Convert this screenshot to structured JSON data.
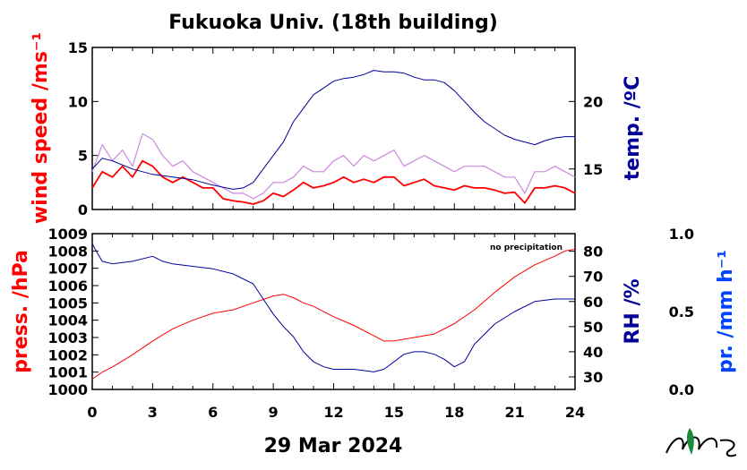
{
  "title": "Fukuoka Univ. (18th building)",
  "date_label": "29 Mar 2024",
  "note": "no precipitation",
  "labels": {
    "wind": "wind speed /ms⁻¹",
    "temp": "temp. /ºC",
    "press": "press. /hPa",
    "rh": "RH /%",
    "precip": "pr. /mm h⁻¹"
  },
  "colors": {
    "wind": "#ff0000",
    "wind_gust": "#cc88dd",
    "temp": "#000099",
    "press": "#ff0000",
    "rh": "#000099",
    "precip": "#0044ff",
    "logo": "#1a8a3a"
  },
  "chart_data": [
    {
      "type": "line",
      "panel": "top",
      "x_ticks": [
        0,
        3,
        6,
        9,
        12,
        15,
        18,
        21,
        24
      ],
      "xlim": [
        0,
        24
      ],
      "left_axis": {
        "ylim": [
          0,
          15
        ],
        "ticks": [
          0,
          5,
          10,
          15
        ]
      },
      "right_axis": {
        "ylim": [
          12,
          24
        ],
        "ticks": [
          15,
          20
        ]
      },
      "series": [
        {
          "key": "wind_gust",
          "axis": "left",
          "x": [
            0,
            0.5,
            1,
            1.5,
            2,
            2.5,
            3,
            3.5,
            4,
            4.5,
            5,
            5.5,
            6,
            6.5,
            7,
            7.5,
            8,
            8.5,
            9,
            9.5,
            10,
            10.5,
            11,
            11.5,
            12,
            12.5,
            13,
            13.5,
            14,
            14.5,
            15,
            15.5,
            16,
            16.5,
            17,
            17.5,
            18,
            18.5,
            19,
            19.5,
            20,
            20.5,
            21,
            21.5,
            22,
            22.5,
            23,
            23.5,
            24
          ],
          "y": [
            3.5,
            6,
            4.5,
            5.5,
            4,
            7,
            6.5,
            5,
            4,
            4.5,
            3.5,
            3,
            2.5,
            2,
            1.5,
            1.5,
            1,
            1.5,
            2.5,
            2.5,
            3,
            4,
            3.5,
            3.5,
            4.5,
            5,
            4,
            5,
            4.5,
            5,
            5.5,
            4,
            4.5,
            5,
            4.5,
            4,
            3.5,
            4,
            4,
            4,
            3.5,
            3,
            3,
            1.5,
            3.5,
            3.5,
            4,
            3.5,
            3
          ]
        },
        {
          "key": "wind",
          "axis": "left",
          "x": [
            0,
            0.5,
            1,
            1.5,
            2,
            2.5,
            3,
            3.5,
            4,
            4.5,
            5,
            5.5,
            6,
            6.5,
            7,
            7.5,
            8,
            8.5,
            9,
            9.5,
            10,
            10.5,
            11,
            11.5,
            12,
            12.5,
            13,
            13.5,
            14,
            14.5,
            15,
            15.5,
            16,
            16.5,
            17,
            17.5,
            18,
            18.5,
            19,
            19.5,
            20,
            20.5,
            21,
            21.5,
            22,
            22.5,
            23,
            23.5,
            24
          ],
          "y": [
            2,
            3.5,
            3,
            4,
            3,
            4.5,
            4,
            3,
            2.5,
            3,
            2.5,
            2,
            2,
            1,
            0.8,
            0.7,
            0.5,
            0.8,
            1.5,
            1.2,
            1.8,
            2.5,
            2,
            2.2,
            2.5,
            3,
            2.5,
            2.8,
            2.5,
            3,
            3,
            2.2,
            2.5,
            2.8,
            2.2,
            2,
            1.8,
            2.2,
            2,
            2,
            1.8,
            1.5,
            1.6,
            0.6,
            2,
            2,
            2.2,
            2,
            1.5
          ]
        },
        {
          "key": "temp",
          "axis": "right",
          "x": [
            0,
            0.5,
            1,
            2,
            3,
            4,
            5,
            6,
            7,
            7.5,
            8,
            8.5,
            9,
            9.5,
            10,
            10.5,
            11,
            11.5,
            12,
            12.5,
            13,
            13.5,
            14,
            14.5,
            15,
            15.5,
            16,
            16.5,
            17,
            17.5,
            18,
            18.5,
            19,
            19.5,
            20,
            20.5,
            21,
            21.5,
            22,
            22.5,
            23,
            23.5,
            24
          ],
          "y": [
            15,
            15.8,
            15.6,
            15,
            14.6,
            14.4,
            14.2,
            13.8,
            13.5,
            13.6,
            14,
            15,
            16,
            17,
            18.5,
            19.5,
            20.5,
            21,
            21.5,
            21.7,
            21.8,
            22,
            22.3,
            22.2,
            22.2,
            22.1,
            21.8,
            21.6,
            21.6,
            21.4,
            20.8,
            20,
            19.2,
            18.5,
            18,
            17.5,
            17.2,
            17,
            16.8,
            17.1,
            17.3,
            17.4,
            17.4
          ]
        }
      ]
    },
    {
      "type": "line",
      "panel": "bottom",
      "x_ticks": [
        0,
        3,
        6,
        9,
        12,
        15,
        18,
        21,
        24
      ],
      "xlim": [
        0,
        24
      ],
      "left_axis": {
        "ylim": [
          1000,
          1009
        ],
        "ticks": [
          1000,
          1001,
          1002,
          1003,
          1004,
          1005,
          1006,
          1007,
          1008,
          1009
        ]
      },
      "right_axis": {
        "ylim": [
          25,
          87
        ],
        "ticks": [
          30,
          40,
          50,
          60,
          70,
          80
        ]
      },
      "far_right_axis": {
        "ylim": [
          0,
          1
        ],
        "ticks": [
          "0.0",
          "0.5",
          "1.0"
        ]
      },
      "series": [
        {
          "key": "press",
          "axis": "left",
          "x": [
            0,
            0.5,
            1,
            2,
            3,
            4,
            5,
            6,
            7,
            7.5,
            8,
            8.5,
            9,
            9.5,
            10,
            10.5,
            11,
            12,
            13,
            14,
            14.5,
            15,
            15.5,
            16,
            17,
            18,
            19,
            20,
            21,
            22,
            23,
            23.5,
            24
          ],
          "y": [
            1000.6,
            1001,
            1001.3,
            1002,
            1002.8,
            1003.5,
            1004,
            1004.4,
            1004.6,
            1004.8,
            1005,
            1005.2,
            1005.4,
            1005.5,
            1005.3,
            1005,
            1004.8,
            1004.2,
            1003.7,
            1003.1,
            1002.8,
            1002.8,
            1002.9,
            1003,
            1003.2,
            1003.8,
            1004.6,
            1005.6,
            1006.5,
            1007.2,
            1007.7,
            1008,
            1008.1
          ]
        },
        {
          "key": "rh",
          "axis": "right",
          "x": [
            0,
            0.2,
            0.5,
            1,
            2,
            3,
            3.5,
            4,
            5,
            6,
            7,
            7.5,
            8,
            8.5,
            9,
            9.5,
            10,
            10.5,
            11,
            11.5,
            12,
            13,
            14,
            14.5,
            15,
            15.5,
            16,
            16.5,
            17,
            17.5,
            18,
            18.5,
            19,
            20,
            21,
            22,
            23,
            24
          ],
          "y": [
            83,
            80,
            76,
            75,
            76,
            78,
            76,
            75,
            74,
            73,
            71,
            69,
            67,
            61,
            55,
            50,
            46,
            40,
            36,
            34,
            33,
            33,
            32,
            33,
            36,
            39,
            40,
            40,
            39,
            37,
            34,
            36,
            43,
            51,
            56,
            60,
            61,
            61
          ]
        }
      ]
    }
  ]
}
